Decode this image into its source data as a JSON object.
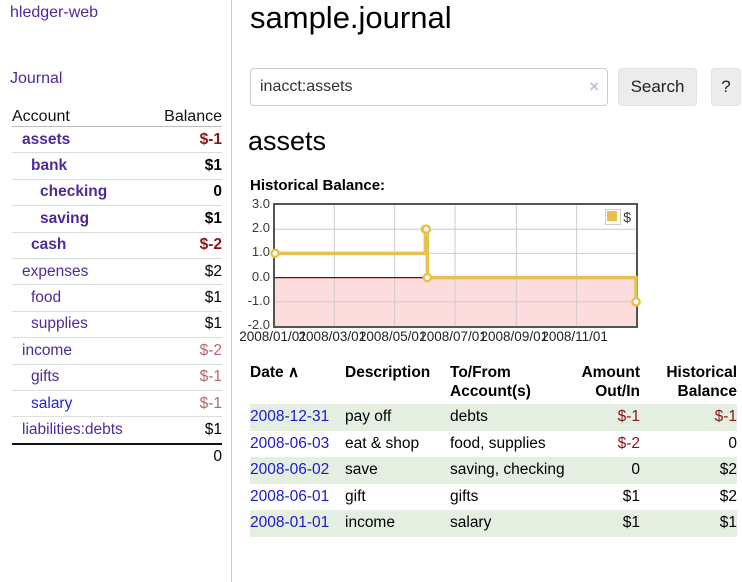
{
  "app": {
    "brand": "hledger-web",
    "nav": {
      "journal": "Journal"
    }
  },
  "sidebar": {
    "header": {
      "account": "Account",
      "balance": "Balance"
    },
    "accounts": [
      {
        "name": "assets",
        "level": 0,
        "bold": true,
        "balance": "$-1",
        "balance_class": "neg-strong"
      },
      {
        "name": "bank",
        "level": 1,
        "bold": true,
        "balance": "$1",
        "balance_class": ""
      },
      {
        "name": "checking",
        "level": 2,
        "bold": true,
        "balance": "0",
        "balance_class": ""
      },
      {
        "name": "saving",
        "level": 2,
        "bold": true,
        "balance": "$1",
        "balance_class": ""
      },
      {
        "name": "cash",
        "level": 1,
        "bold": true,
        "balance": "$-2",
        "balance_class": "neg-strong"
      },
      {
        "name": "expenses",
        "level": 0,
        "bold": false,
        "balance": "$2",
        "balance_class": ""
      },
      {
        "name": "food",
        "level": 1,
        "bold": false,
        "balance": "$1",
        "balance_class": ""
      },
      {
        "name": "supplies",
        "level": 1,
        "bold": false,
        "balance": "$1",
        "balance_class": ""
      },
      {
        "name": "income",
        "level": 0,
        "bold": false,
        "balance": "$-2",
        "balance_class": "neg-soft"
      },
      {
        "name": "gifts",
        "level": 1,
        "bold": false,
        "balance": "$-1",
        "balance_class": "neg-soft"
      },
      {
        "name": "salary",
        "level": 1,
        "bold": false,
        "balance": "$-1",
        "balance_class": "neg-soft",
        "link_blue": true
      },
      {
        "name": "liabilities:debts",
        "level": 0,
        "bold": false,
        "balance": "$1",
        "balance_class": ""
      }
    ],
    "total": "0"
  },
  "main": {
    "title": "sample.journal",
    "search": {
      "value": "inacct:assets",
      "clear_icon": "×",
      "button_label": "Search",
      "help_label": "?"
    },
    "account_heading": "assets",
    "chart_label": "Historical Balance:"
  },
  "chart_data": {
    "type": "line",
    "step": true,
    "title": "Historical Balance:",
    "xlim": [
      "2008-01-01",
      "2008-12-31"
    ],
    "ylim": [
      -2,
      3
    ],
    "y_ticks": [
      "3.0",
      "2.0",
      "1.0",
      "0.0",
      "-1.0",
      "-2.0"
    ],
    "x_ticks": [
      "2008/01/01",
      "2008/03/01",
      "2008/05/01",
      "2008/07/01",
      "2008/09/01",
      "2008/11/01"
    ],
    "grid": true,
    "legend_position": "top-right",
    "series": [
      {
        "name": "$",
        "color": "#e8c14d",
        "points": [
          [
            "2008-01-01",
            1
          ],
          [
            "2008-06-01",
            2
          ],
          [
            "2008-06-02",
            2
          ],
          [
            "2008-06-03",
            0
          ],
          [
            "2008-12-31",
            -1
          ]
        ]
      }
    ],
    "negative_region": {
      "from": 0,
      "fill": "#fcdcdc",
      "line_color": "#8b0000"
    }
  },
  "register": {
    "columns": [
      "Date",
      "Description",
      "To/From Account(s)",
      "Amount Out/In",
      "Historical Balance"
    ],
    "sort_indicator": "∧",
    "rows": [
      {
        "date": "2008-12-31",
        "description": "pay off",
        "accounts": "debts",
        "amount": "$-1",
        "amount_neg": true,
        "balance": "$-1",
        "balance_neg": true,
        "stripe": true
      },
      {
        "date": "2008-06-03",
        "description": "eat & shop",
        "accounts": "food, supplies",
        "amount": "$-2",
        "amount_neg": true,
        "balance": "0",
        "balance_neg": false,
        "stripe": false
      },
      {
        "date": "2008-06-02",
        "description": "save",
        "accounts": "saving, checking",
        "amount": "0",
        "amount_neg": false,
        "balance": "$2",
        "balance_neg": false,
        "stripe": true
      },
      {
        "date": "2008-06-01",
        "description": "gift",
        "accounts": "gifts",
        "amount": "$1",
        "amount_neg": false,
        "balance": "$2",
        "balance_neg": false,
        "stripe": false
      },
      {
        "date": "2008-01-01",
        "description": "income",
        "accounts": "salary",
        "amount": "$1",
        "amount_neg": false,
        "balance": "$1",
        "balance_neg": false,
        "stripe": true
      }
    ]
  },
  "colors": {
    "link_purple": "#4e2a9a",
    "link_blue": "#1a1ac8",
    "negative_strong": "#8b1414",
    "negative_soft": "#b5686c",
    "row_stripe_green": "#e4efe2",
    "chart_line_gold": "#e8c14d",
    "chart_negative_fill": "#fcdcdc",
    "chart_zero_line": "#8b0000",
    "chart_border": "#545454",
    "chart_grid": "#cccccc"
  }
}
